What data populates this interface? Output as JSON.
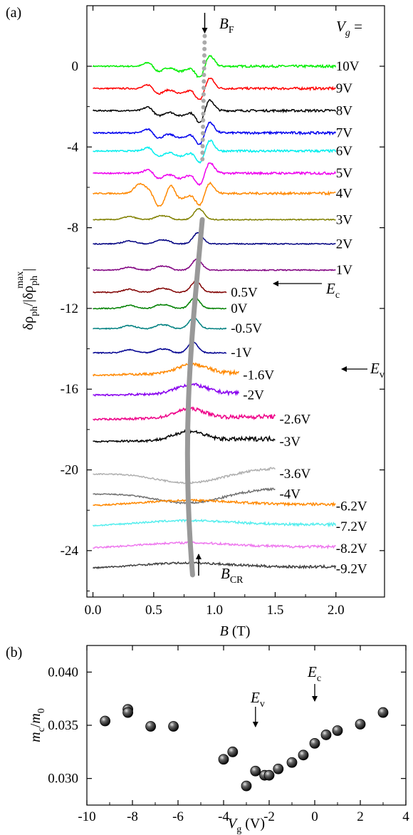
{
  "chart_data": [
    {
      "type": "line",
      "panel_label": "(a)",
      "xlabel": "B",
      "xlabel_unit": "(T)",
      "ylabel": "δρph/|δρphmax|",
      "xlim": [
        -0.05,
        2.4
      ],
      "ylim": [
        -26.3,
        3.0
      ],
      "x_ticks": [
        "0.0",
        "0.5",
        "1.0",
        "1.5",
        "2.0"
      ],
      "y_ticks": [
        "0",
        "-4",
        "-8",
        "-12",
        "-16",
        "-20",
        "-24"
      ],
      "legend_title": "Vg =",
      "annotations": {
        "BF": "BF",
        "BCR": "BCR",
        "Ec": "Ec",
        "Ev": "Ev"
      },
      "series": [
        {
          "name": "10V",
          "offset": 0.0,
          "color": "#00ee00",
          "x_end": 2.0
        },
        {
          "name": "9V",
          "offset": -1.1,
          "color": "#ff0000",
          "x_end": 2.0
        },
        {
          "name": "8V",
          "offset": -2.2,
          "color": "#000000",
          "x_end": 2.0
        },
        {
          "name": "7V",
          "offset": -3.3,
          "color": "#0000ee",
          "x_end": 2.0
        },
        {
          "name": "6V",
          "offset": -4.2,
          "color": "#00eeee",
          "x_end": 2.0
        },
        {
          "name": "5V",
          "offset": -5.3,
          "color": "#ee00ee",
          "x_end": 2.0
        },
        {
          "name": "4V",
          "offset": -6.3,
          "color": "#ff8800",
          "x_end": 2.0
        },
        {
          "name": "3V",
          "offset": -7.6,
          "color": "#808000",
          "x_end": 2.0
        },
        {
          "name": "2V",
          "offset": -8.8,
          "color": "#000080",
          "x_end": 2.0
        },
        {
          "name": "1V",
          "offset": -10.1,
          "color": "#800080",
          "x_end": 2.0
        },
        {
          "name": "0.5V",
          "offset": -11.2,
          "color": "#800000",
          "x_end": 1.1
        },
        {
          "name": "0V",
          "offset": -12.0,
          "color": "#008000",
          "x_end": 1.1
        },
        {
          "name": "-0.5V",
          "offset": -13.0,
          "color": "#008080",
          "x_end": 1.1
        },
        {
          "name": "-1V",
          "offset": -14.2,
          "color": "#000090",
          "x_end": 1.1
        },
        {
          "name": "-1.6V",
          "offset": -15.3,
          "color": "#ff8800",
          "x_end": 1.2
        },
        {
          "name": "-2V",
          "offset": -16.3,
          "color": "#8800ee",
          "x_end": 1.2
        },
        {
          "name": "-2.6V",
          "offset": -17.5,
          "color": "#ee0088",
          "x_end": 1.5
        },
        {
          "name": "-3V",
          "offset": -18.6,
          "color": "#000000",
          "x_end": 1.5
        },
        {
          "name": "-3.6V",
          "offset": -20.2,
          "color": "#b0b0b0",
          "x_end": 1.5
        },
        {
          "name": "-4V",
          "offset": -21.2,
          "color": "#707070",
          "x_end": 1.5
        },
        {
          "name": "-6.2V",
          "offset": -21.8,
          "color": "#ff8800",
          "x_end": 2.0
        },
        {
          "name": "-7.2V",
          "offset": -22.8,
          "color": "#55eeee",
          "x_end": 2.0
        },
        {
          "name": "-8.2V",
          "offset": -23.9,
          "color": "#ee77ee",
          "x_end": 2.0
        },
        {
          "name": "-9.2V",
          "offset": -24.9,
          "color": "#404040",
          "x_end": 2.0
        }
      ]
    },
    {
      "type": "scatter",
      "panel_label": "(b)",
      "xlabel": "Vg",
      "xlabel_unit": "(V)",
      "ylabel": "mc/m0",
      "xlim": [
        -10,
        4
      ],
      "ylim": [
        0.0275,
        0.0425
      ],
      "x_ticks": [
        "-10",
        "-8",
        "-6",
        "-4",
        "-2",
        "0",
        "2",
        "4"
      ],
      "y_ticks": [
        "0.030",
        "0.035",
        "0.040"
      ],
      "annotations": {
        "Ev": "Ev",
        "Ec": "Ec"
      },
      "x": [
        -9.2,
        -8.2,
        -8.2,
        -7.2,
        -6.2,
        -4.0,
        -3.6,
        -3.0,
        -2.6,
        -2.2,
        -2.0,
        -1.6,
        -1.0,
        -0.5,
        0.0,
        0.5,
        1.0,
        2.0,
        3.0
      ],
      "y": [
        0.0354,
        0.0365,
        0.0362,
        0.0349,
        0.0349,
        0.0318,
        0.0325,
        0.0293,
        0.0307,
        0.0303,
        0.0303,
        0.0309,
        0.0315,
        0.0322,
        0.0333,
        0.0341,
        0.0345,
        0.0351,
        0.0362
      ]
    }
  ]
}
